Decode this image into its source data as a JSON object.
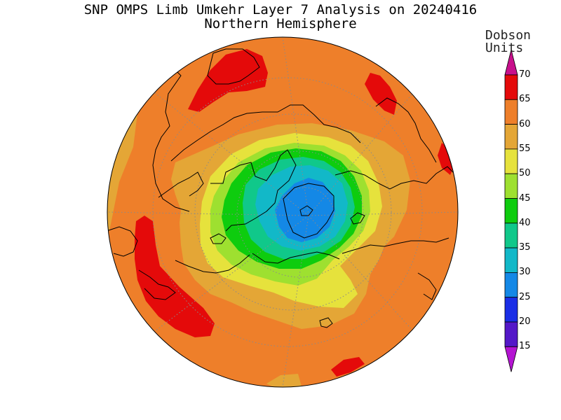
{
  "title": "SNP OMPS Limb Umkehr Layer 7 Analysis on 20240416",
  "subtitle": "Northern Hemisphere",
  "legend": {
    "units_line1": "Dobson",
    "units_line2": "Units",
    "labels": [
      "70",
      "65",
      "60",
      "55",
      "50",
      "45",
      "40",
      "35",
      "30",
      "25",
      "20",
      "15"
    ],
    "colors": [
      "#e40a0a",
      "#ee7f2a",
      "#e4a636",
      "#e6e23c",
      "#9ee030",
      "#0ecc0e",
      "#10c88a",
      "#12b8c8",
      "#1488e6",
      "#1a2ee6",
      "#5418c8",
      "#8c12d2"
    ],
    "top_arrow_color": "#c8108c",
    "bottom_arrow_color": "#b414d2"
  },
  "map": {
    "projection": "polar-stereographic",
    "hemisphere": "north",
    "graticule": "dotted"
  }
}
